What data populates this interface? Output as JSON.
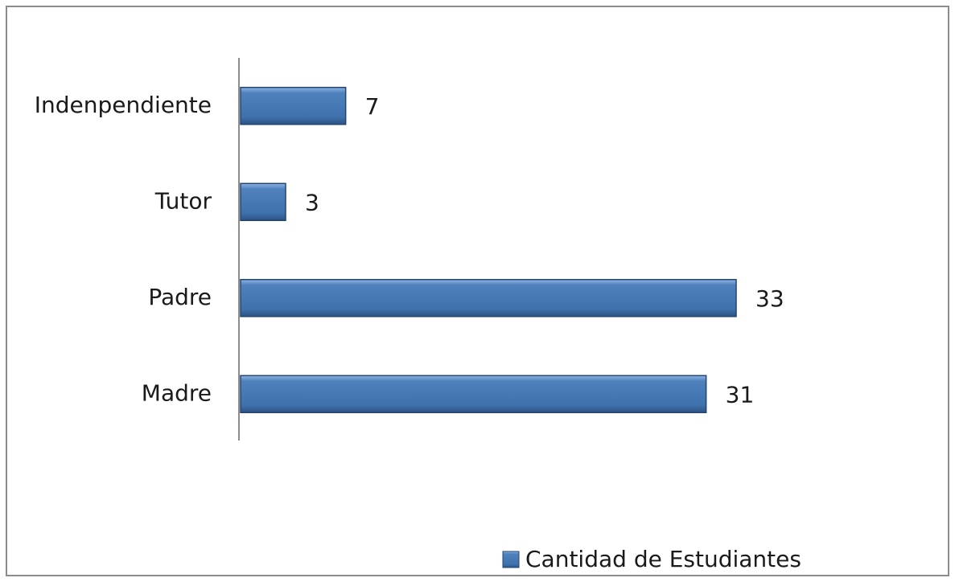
{
  "chart_data": {
    "type": "barh",
    "categories": [
      "Madre",
      "Padre",
      "Tutor",
      "Indenpendiente"
    ],
    "series": [
      {
        "name": "Cantidad de Estudiantes",
        "color": "#4f81bd",
        "values": [
          31,
          33,
          3,
          7
        ]
      }
    ],
    "legend": "bottom"
  }
}
